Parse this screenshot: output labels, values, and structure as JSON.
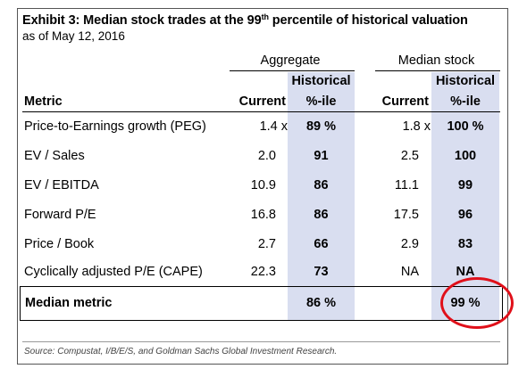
{
  "exhibit": {
    "title_main": "Exhibit 3: Median stock trades at the 99",
    "title_sup": "th",
    "title_end": " percentile of historical valuation",
    "subtitle": "as of May 12, 2016"
  },
  "groups": {
    "aggregate": "Aggregate",
    "median_stock": "Median stock"
  },
  "headers": {
    "metric": "Metric",
    "agg_current": "Current",
    "agg_hist_1": "Historical",
    "agg_hist_2": "%-ile",
    "med_current": "Current",
    "med_hist_1": "Historical",
    "med_hist_2": "%-ile"
  },
  "rows": [
    {
      "metric": "Price-to-Earnings growth (PEG)",
      "agg_current": "1.4 x",
      "agg_pct": "89 %",
      "med_current": "1.8 x",
      "med_pct": "100 %"
    },
    {
      "metric": "EV / Sales",
      "agg_current": "2.0",
      "agg_pct": "91",
      "med_current": "2.5",
      "med_pct": "100"
    },
    {
      "metric": "EV / EBITDA",
      "agg_current": "10.9",
      "agg_pct": "86",
      "med_current": "11.1",
      "med_pct": "99"
    },
    {
      "metric": "Forward P/E",
      "agg_current": "16.8",
      "agg_pct": "86",
      "med_current": "17.5",
      "med_pct": "96"
    },
    {
      "metric": "Price / Book",
      "agg_current": "2.7",
      "agg_pct": "66",
      "med_current": "2.9",
      "med_pct": "83"
    },
    {
      "metric": "Cyclically adjusted P/E (CAPE)",
      "agg_current": "22.3",
      "agg_pct": "73",
      "med_current": "NA",
      "med_pct": "NA"
    }
  ],
  "median": {
    "label": "Median metric",
    "agg_pct": "86 %",
    "med_pct": "99 %"
  },
  "source": "Source: Compustat, I/B/E/S, and Goldman Sachs Global Investment Research.",
  "colors": {
    "shade": "#d9def0",
    "circle": "#e0101a"
  }
}
